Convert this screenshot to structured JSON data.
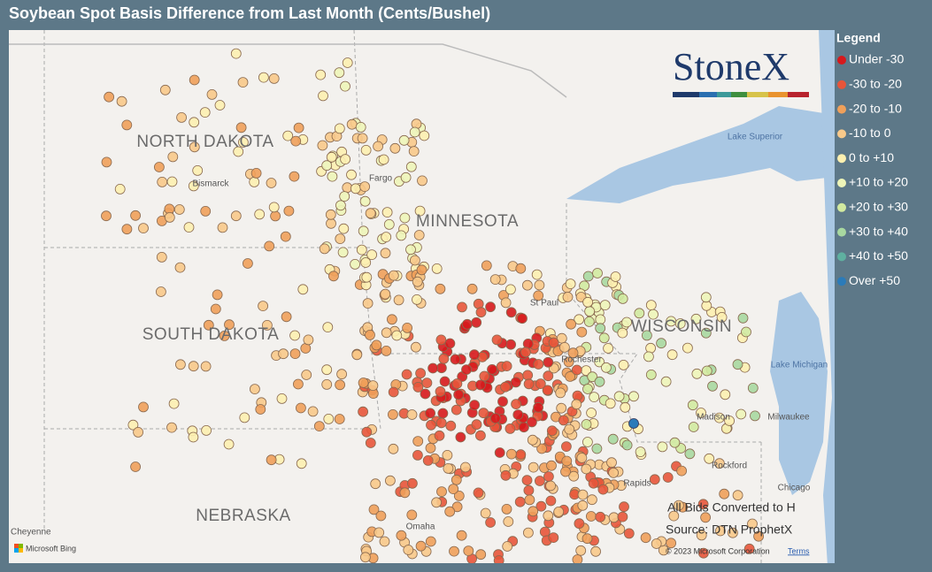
{
  "header": {
    "title": "Soybean Spot Basis Difference from Last Month (Cents/Bushel)"
  },
  "legend": {
    "title": "Legend",
    "items": [
      {
        "label": "Under -30",
        "color": "#d7191c"
      },
      {
        "label": "-30 to -20",
        "color": "#e8553a"
      },
      {
        "label": "-20 to -10",
        "color": "#f0a05a"
      },
      {
        "label": "-10 to 0",
        "color": "#f8c98a"
      },
      {
        "label": "0 to +10",
        "color": "#fdf0b0"
      },
      {
        "label": "+10 to +20",
        "color": "#eef5b8"
      },
      {
        "label": "+20 to +30",
        "color": "#d2eaa0"
      },
      {
        "label": "+30 to +40",
        "color": "#a8d8a0"
      },
      {
        "label": "+40 to +50",
        "color": "#5fb0a0"
      },
      {
        "label": "Over +50",
        "color": "#2b7bb9"
      }
    ]
  },
  "map": {
    "states": [
      "NORTH DAKOTA",
      "MINNESOTA",
      "SOUTH DAKOTA",
      "WISCONSIN",
      "NEBRASKA"
    ],
    "cities": [
      "Bismarck",
      "Fargo",
      "St Paul",
      "Rochester",
      "Madison",
      "Milwaukee",
      "Rockford",
      "Chicago",
      "Omaha",
      "Rapids",
      "Cheyenne"
    ],
    "water": [
      "Lake Superior",
      "Lake Michigan"
    ],
    "logo": "StoneX",
    "notes": [
      "All Bids Converted to H",
      "Source: DTN ProphetX"
    ],
    "provider": "Microsoft Bing",
    "copyright": "© 2023 Microsoft Corporation",
    "terms": "Terms"
  }
}
